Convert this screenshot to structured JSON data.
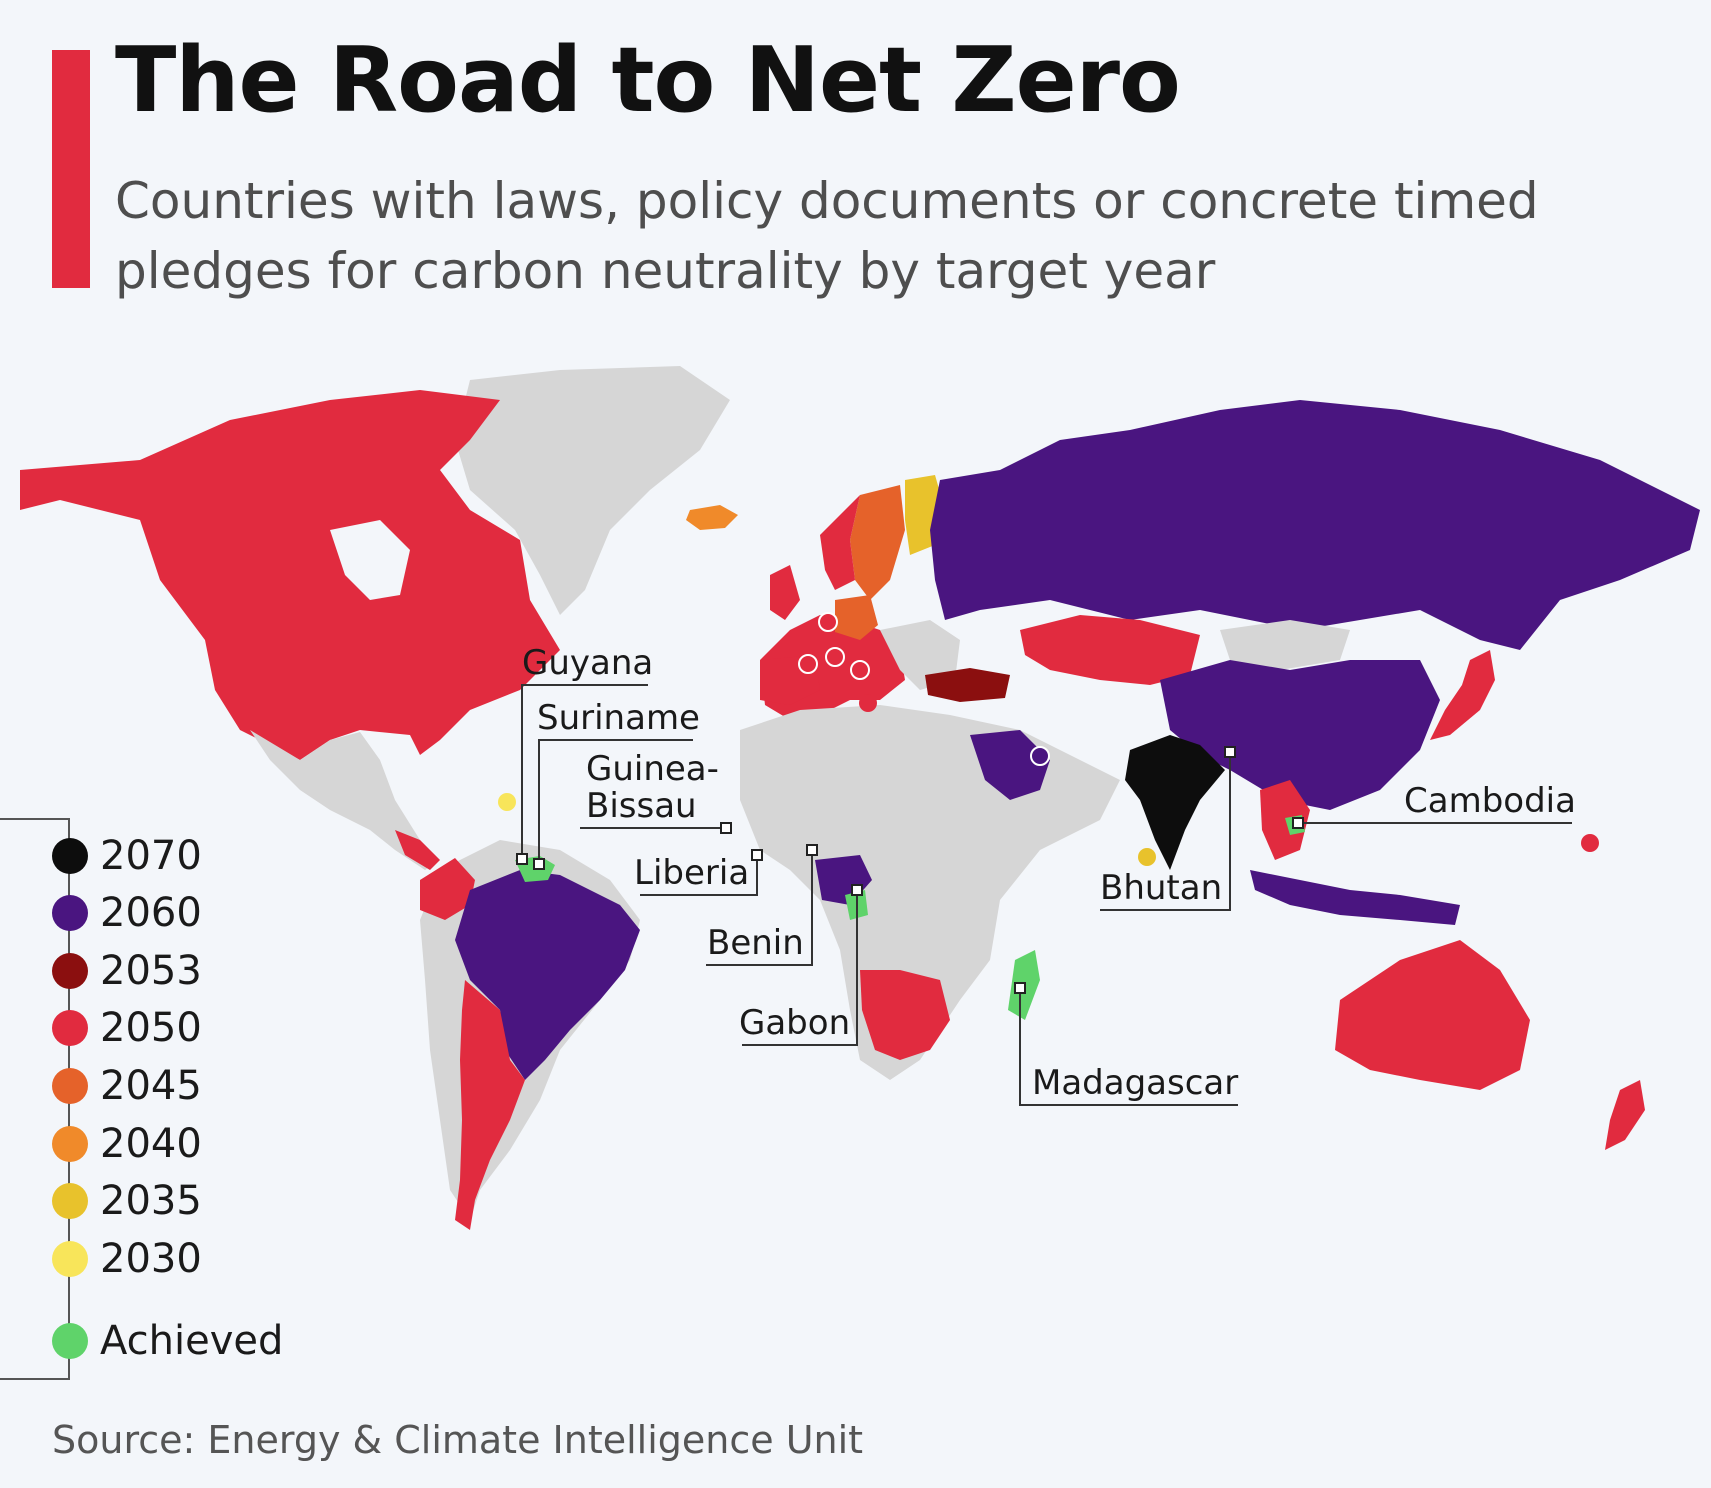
{
  "header": {
    "title": "The Road to Net Zero",
    "subtitle": "Countries with laws, policy documents or concrete timed pledges for carbon neutrality by target year"
  },
  "legend": [
    {
      "label": "2070",
      "color": "#0d0d0d"
    },
    {
      "label": "2060",
      "color": "#4a1580"
    },
    {
      "label": "2053",
      "color": "#8b0f0f"
    },
    {
      "label": "2050",
      "color": "#e12b3f"
    },
    {
      "label": "2045",
      "color": "#e5622a"
    },
    {
      "label": "2040",
      "color": "#f08a2a"
    },
    {
      "label": "2035",
      "color": "#e8c22c"
    },
    {
      "label": "2030",
      "color": "#f8e55a"
    },
    {
      "label": "Achieved",
      "color": "#5fd36a"
    }
  ],
  "labels": {
    "guyana": "Guyana",
    "suriname": "Suriname",
    "guinea_bissau_1": "Guinea-",
    "guinea_bissau_2": "Bissau",
    "liberia": "Liberia",
    "benin": "Benin",
    "gabon": "Gabon",
    "madagascar": "Madagascar",
    "bhutan": "Bhutan",
    "cambodia": "Cambodia"
  },
  "source": "Source: Energy & Climate Intelligence Unit"
}
